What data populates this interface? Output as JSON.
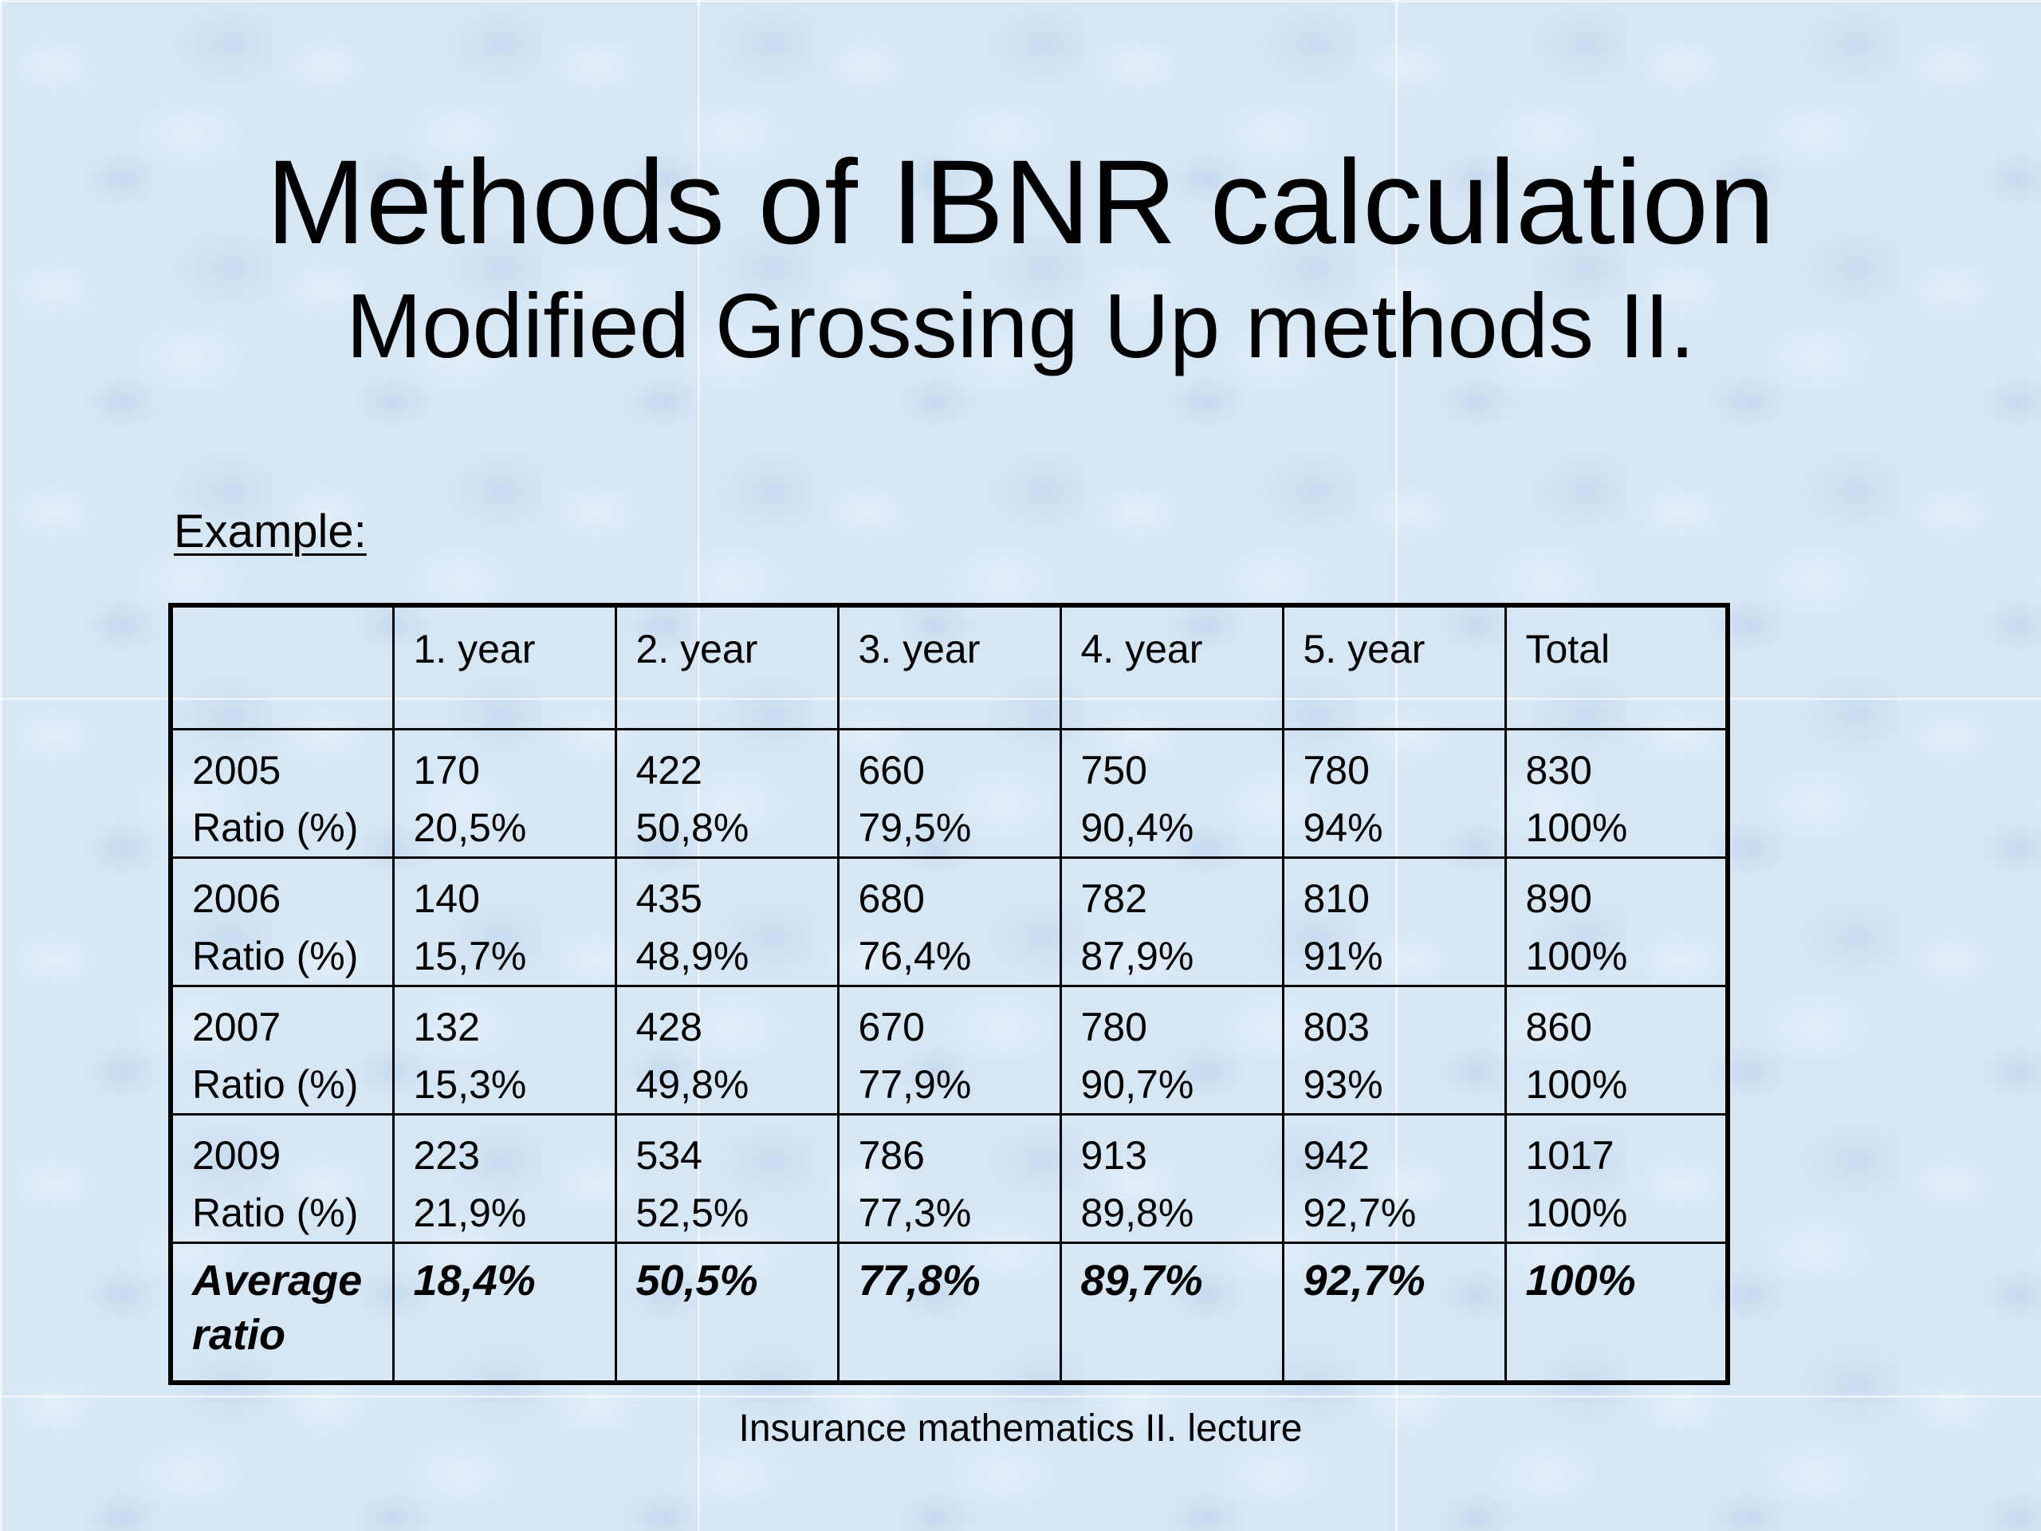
{
  "slide": {
    "title": "Methods of IBNR calculation",
    "subtitle": "Modified Grossing Up methods II.",
    "example_label": "Example:",
    "footer": "Insurance mathematics II. lecture"
  },
  "table": {
    "headers": [
      "",
      "1. year",
      "2. year",
      "3. year",
      "4. year",
      "5. year",
      "Total"
    ],
    "rows": [
      {
        "year": "2005",
        "ratio_label": "Ratio (%)",
        "values": [
          "170",
          "422",
          "660",
          "750",
          "780",
          "830"
        ],
        "ratios": [
          "20,5%",
          "50,8%",
          "79,5%",
          "90,4%",
          "94%",
          "100%"
        ]
      },
      {
        "year": "2006",
        "ratio_label": "Ratio (%)",
        "values": [
          "140",
          "435",
          "680",
          "782",
          "810",
          "890"
        ],
        "ratios": [
          "15,7%",
          "48,9%",
          "76,4%",
          "87,9%",
          "91%",
          "100%"
        ]
      },
      {
        "year": "2007",
        "ratio_label": "Ratio (%)",
        "values": [
          "132",
          "428",
          "670",
          "780",
          "803",
          "860"
        ],
        "ratios": [
          "15,3%",
          "49,8%",
          "77,9%",
          "90,7%",
          "93%",
          "100%"
        ]
      },
      {
        "year": "2009",
        "ratio_label": "Ratio (%)",
        "values": [
          "223",
          "534",
          "786",
          "913",
          "942",
          "1017"
        ],
        "ratios": [
          "21,9%",
          "52,5%",
          "77,3%",
          "89,8%",
          "92,7%",
          "100%"
        ]
      }
    ],
    "average": {
      "label_line1": "Average",
      "label_line2": "ratio",
      "values": [
        "18,4%",
        "50,5%",
        "77,8%",
        "89,7%",
        "92,7%",
        "100%"
      ]
    }
  }
}
